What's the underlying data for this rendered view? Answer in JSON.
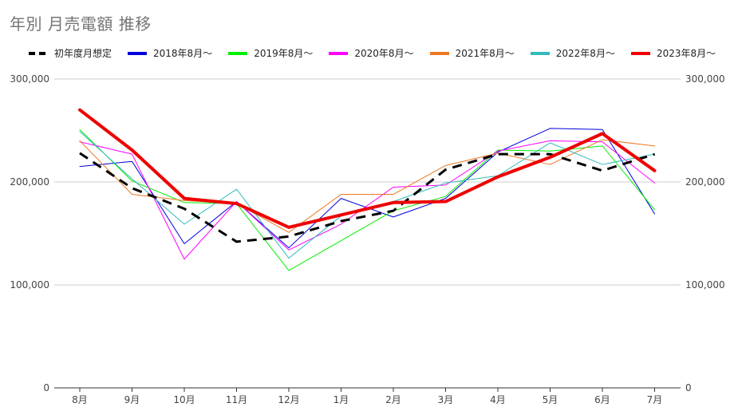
{
  "chart_data": {
    "type": "line",
    "title": "年別 月売電額 推移",
    "categories": [
      "8月",
      "9月",
      "10月",
      "11月",
      "12月",
      "1月",
      "2月",
      "3月",
      "4月",
      "5月",
      "6月",
      "7月"
    ],
    "ylim": [
      0,
      300000
    ],
    "yticks": [
      "0",
      "100,000",
      "200,000",
      "300,000"
    ],
    "ytick_values": [
      0,
      100000,
      200000,
      300000
    ],
    "grid": true,
    "legend_position": "top",
    "series": [
      {
        "name": "初年度月想定",
        "color": "#000000",
        "dashed": true,
        "width": 3,
        "values": [
          228000,
          194000,
          174000,
          142000,
          147000,
          162000,
          172000,
          212000,
          227000,
          227000,
          211000,
          227000
        ]
      },
      {
        "name": "2018年8月～",
        "color": "#0000dd",
        "dashed": false,
        "width": 1,
        "values": [
          215000,
          220000,
          140000,
          181000,
          136000,
          184000,
          166000,
          184000,
          229000,
          252000,
          251000,
          169000
        ]
      },
      {
        "name": "2019年8月～",
        "color": "#00ee00",
        "dashed": false,
        "width": 1,
        "values": [
          251000,
          201000,
          180000,
          179000,
          114000,
          143000,
          172000,
          186000,
          231000,
          230000,
          235000,
          173000
        ]
      },
      {
        "name": "2020年8月～",
        "color": "#ff00ff",
        "dashed": false,
        "width": 1,
        "values": [
          239000,
          227000,
          125000,
          181000,
          134000,
          159000,
          195000,
          197000,
          230000,
          240000,
          239000,
          199000
        ]
      },
      {
        "name": "2021年8月～",
        "color": "#ee7722",
        "dashed": false,
        "width": 1,
        "values": [
          240000,
          188000,
          182000,
          179000,
          151000,
          188000,
          188000,
          216000,
          228000,
          217000,
          241000,
          235000
        ]
      },
      {
        "name": "2022年8月～",
        "color": "#33bbbb",
        "dashed": false,
        "width": 1,
        "values": [
          249000,
          203000,
          159000,
          193000,
          126000,
          167000,
          181000,
          199000,
          206000,
          238000,
          217000,
          227000
        ]
      },
      {
        "name": "2023年8月～",
        "color": "#ee0000",
        "dashed": false,
        "width": 4,
        "values": [
          270000,
          231000,
          184000,
          179000,
          156000,
          168000,
          180000,
          181000,
          205000,
          224000,
          247000,
          211000
        ]
      }
    ]
  }
}
